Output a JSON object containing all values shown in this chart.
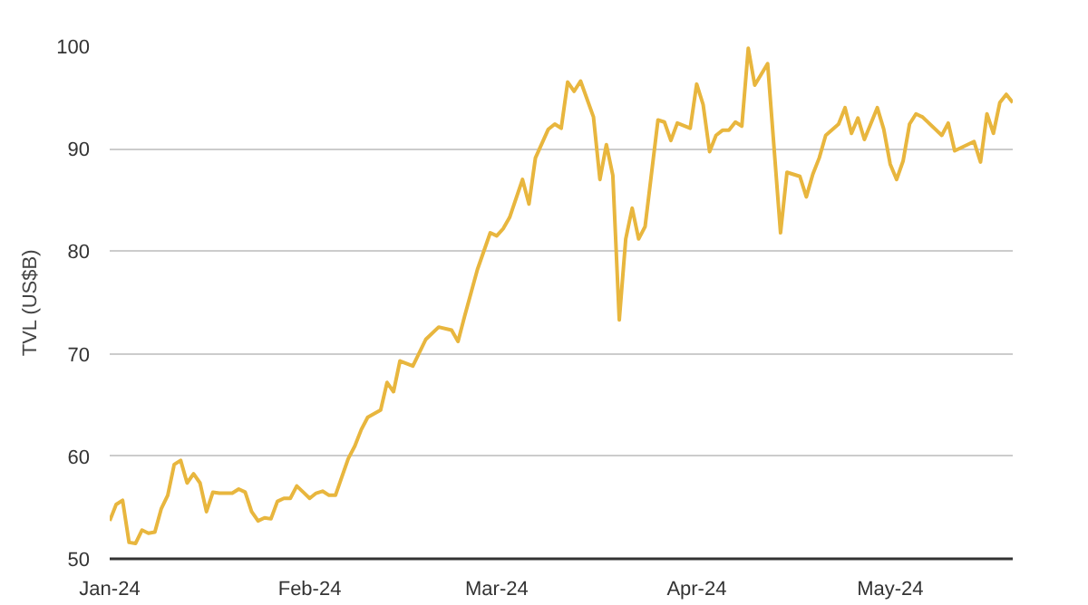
{
  "chart_data": {
    "type": "line",
    "ylabel": "TVL (US$B)",
    "color": "#e8b63e",
    "grid": "y",
    "line_style": "solid",
    "xlim": [
      "2024-01-01",
      "2024-05-20"
    ],
    "ylim": [
      50,
      100
    ],
    "yticks": [
      50,
      60,
      70,
      80,
      90,
      100
    ],
    "xticks": [
      {
        "value": "2024-01-01",
        "label": "Jan-24"
      },
      {
        "value": "2024-02-01",
        "label": "Feb-24"
      },
      {
        "value": "2024-03-01",
        "label": "Mar-24"
      },
      {
        "value": "2024-04-01",
        "label": "Apr-24"
      },
      {
        "value": "2024-05-01",
        "label": "May-24"
      }
    ],
    "x": [
      "2024-01-01",
      "2024-01-02",
      "2024-01-03",
      "2024-01-04",
      "2024-01-05",
      "2024-01-06",
      "2024-01-07",
      "2024-01-08",
      "2024-01-09",
      "2024-01-10",
      "2024-01-11",
      "2024-01-12",
      "2024-01-13",
      "2024-01-14",
      "2024-01-15",
      "2024-01-16",
      "2024-01-17",
      "2024-01-18",
      "2024-01-20",
      "2024-01-21",
      "2024-01-22",
      "2024-01-23",
      "2024-01-24",
      "2024-01-25",
      "2024-01-26",
      "2024-01-27",
      "2024-01-28",
      "2024-01-29",
      "2024-01-30",
      "2024-01-31",
      "2024-02-01",
      "2024-02-02",
      "2024-02-03",
      "2024-02-04",
      "2024-02-05",
      "2024-02-06",
      "2024-02-07",
      "2024-02-08",
      "2024-02-09",
      "2024-02-10",
      "2024-02-12",
      "2024-02-13",
      "2024-02-14",
      "2024-02-15",
      "2024-02-17",
      "2024-02-19",
      "2024-02-21",
      "2024-02-23",
      "2024-02-24",
      "2024-02-25",
      "2024-02-27",
      "2024-02-29",
      "2024-03-01",
      "2024-03-02",
      "2024-03-03",
      "2024-03-05",
      "2024-03-06",
      "2024-03-07",
      "2024-03-09",
      "2024-03-10",
      "2024-03-11",
      "2024-03-12",
      "2024-03-13",
      "2024-03-14",
      "2024-03-16",
      "2024-03-17",
      "2024-03-18",
      "2024-03-19",
      "2024-03-20",
      "2024-03-21",
      "2024-03-22",
      "2024-03-23",
      "2024-03-24",
      "2024-03-26",
      "2024-03-27",
      "2024-03-28",
      "2024-03-29",
      "2024-03-31",
      "2024-04-01",
      "2024-04-02",
      "2024-04-03",
      "2024-04-04",
      "2024-04-05",
      "2024-04-06",
      "2024-04-07",
      "2024-04-08",
      "2024-04-09",
      "2024-04-10",
      "2024-04-12",
      "2024-04-14",
      "2024-04-15",
      "2024-04-17",
      "2024-04-18",
      "2024-04-19",
      "2024-04-20",
      "2024-04-21",
      "2024-04-23",
      "2024-04-24",
      "2024-04-25",
      "2024-04-26",
      "2024-04-27",
      "2024-04-29",
      "2024-04-30",
      "2024-05-01",
      "2024-05-02",
      "2024-05-03",
      "2024-05-04",
      "2024-05-05",
      "2024-05-06",
      "2024-05-09",
      "2024-05-10",
      "2024-05-11",
      "2024-05-14",
      "2024-05-15",
      "2024-05-16",
      "2024-05-17",
      "2024-05-18",
      "2024-05-19",
      "2024-05-20"
    ],
    "values": [
      53.7,
      55.3,
      55.7,
      51.6,
      51.5,
      52.8,
      52.5,
      52.6,
      54.9,
      56.2,
      59.2,
      59.6,
      57.4,
      58.3,
      57.4,
      54.6,
      56.5,
      56.4,
      56.4,
      56.8,
      56.5,
      54.6,
      53.7,
      54.0,
      53.9,
      55.6,
      55.9,
      55.9,
      57.1,
      56.5,
      55.9,
      56.4,
      56.6,
      56.2,
      56.2,
      58.0,
      59.8,
      61.0,
      62.6,
      63.8,
      64.5,
      67.2,
      66.3,
      69.3,
      68.8,
      71.4,
      72.6,
      72.3,
      71.2,
      73.6,
      78.2,
      81.8,
      81.5,
      82.2,
      83.3,
      87.0,
      84.6,
      89.1,
      91.9,
      92.4,
      92.0,
      96.5,
      95.6,
      96.6,
      93.1,
      87.0,
      90.4,
      87.4,
      73.3,
      81.2,
      84.2,
      81.2,
      82.4,
      92.8,
      92.6,
      90.8,
      92.5,
      92.0,
      96.3,
      94.3,
      89.7,
      91.3,
      91.8,
      91.8,
      92.6,
      92.2,
      99.8,
      96.2,
      98.3,
      81.8,
      87.7,
      87.3,
      85.3,
      87.5,
      89.1,
      91.3,
      92.4,
      94.0,
      91.5,
      93.0,
      90.9,
      94.0,
      91.9,
      88.5,
      87.0,
      88.8,
      92.4,
      93.4,
      93.1,
      91.3,
      92.5,
      89.8,
      90.7,
      88.7,
      93.4,
      91.5,
      94.5,
      95.3,
      94.5
    ]
  }
}
